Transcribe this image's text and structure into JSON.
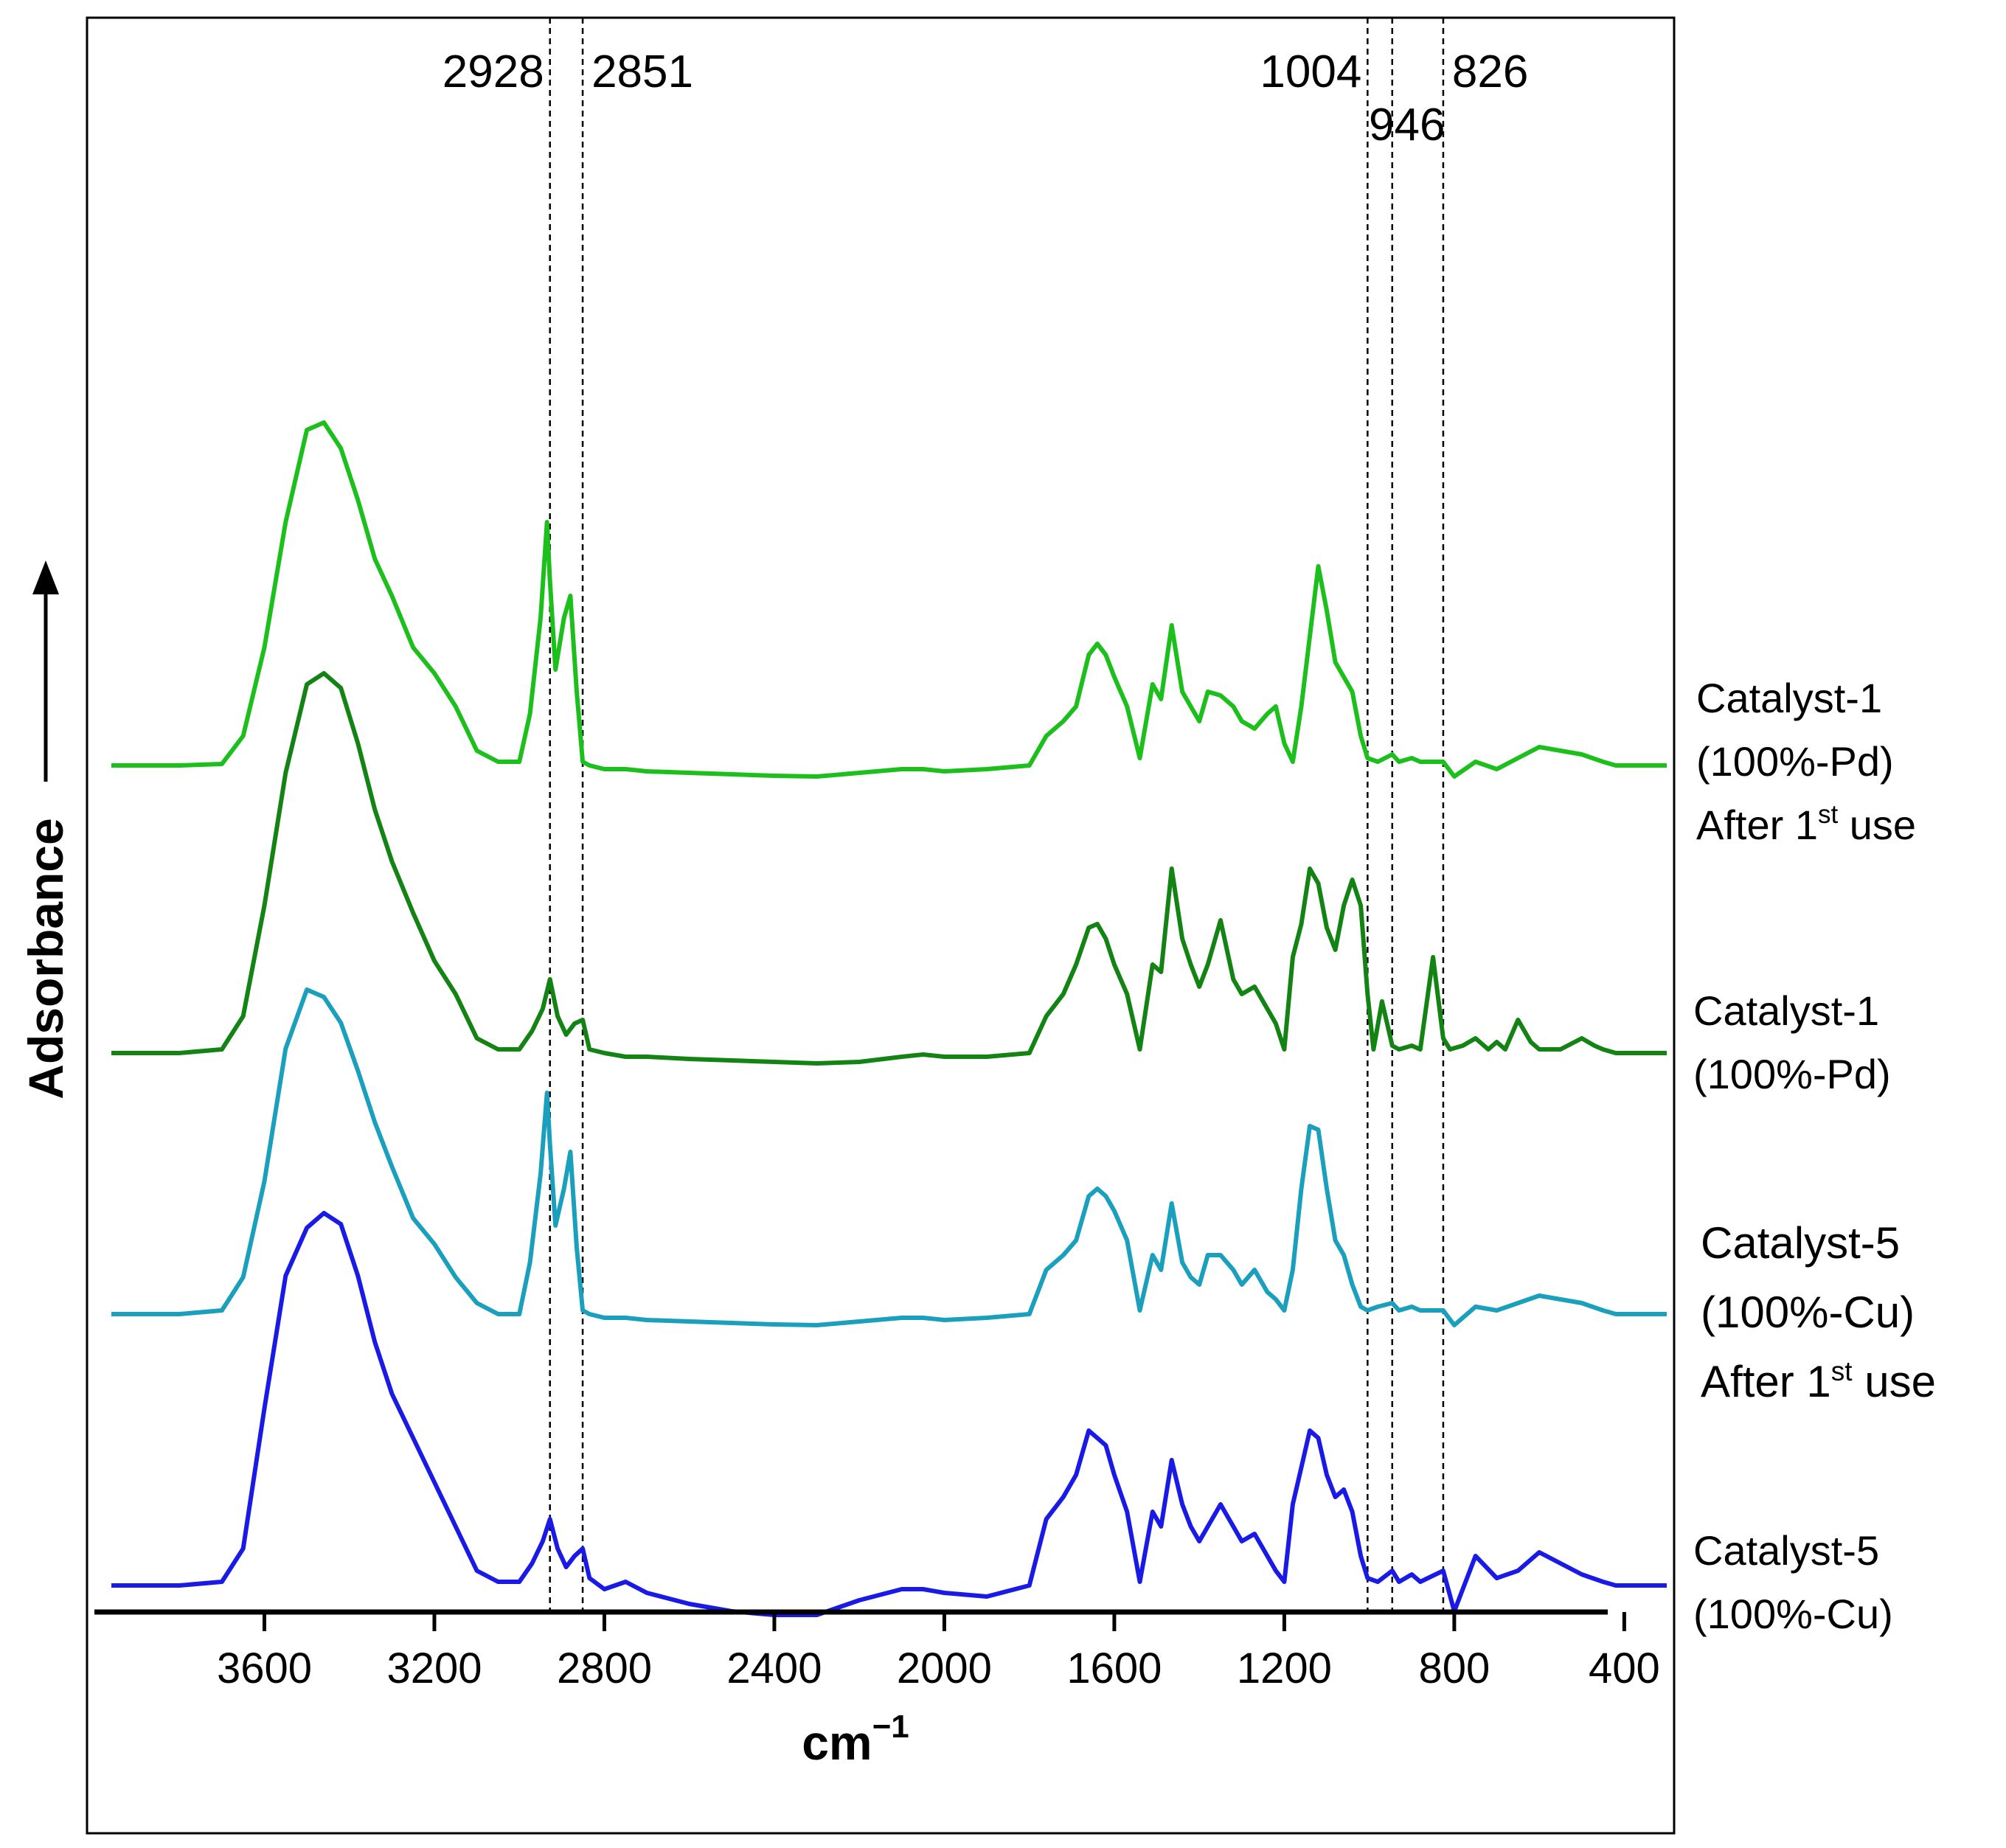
{
  "chart_data": {
    "type": "line",
    "title": "",
    "xlabel": "cm",
    "xlabel_sup": "−1",
    "ylabel": "Adsorbance",
    "x_reversed": true,
    "xlim": [
      4000,
      300
    ],
    "x_ticks": [
      3600,
      3200,
      2800,
      2400,
      2000,
      1600,
      1200,
      800,
      400
    ],
    "x_tick_labels": [
      "3600",
      "3200",
      "2800",
      "2400",
      "2000",
      "1600",
      "1200",
      "800",
      "400"
    ],
    "y_ticks_shown": false,
    "grid": false,
    "legend": "right, labels next to each curve",
    "annotations": {
      "reference_lines": [
        2928,
        2851,
        1004,
        946,
        826
      ],
      "labels": [
        "2928",
        "2851",
        "1004",
        "946",
        "826"
      ]
    },
    "series": [
      {
        "name_lines": [
          "Catalyst-1",
          "(100%-Pd)",
          "After 1",
          "st",
          " use"
        ],
        "color": "#1dbf1d",
        "x": [
          3960,
          3800,
          3700,
          3650,
          3600,
          3550,
          3500,
          3460,
          3420,
          3380,
          3340,
          3300,
          3250,
          3200,
          3150,
          3100,
          3050,
          3000,
          2975,
          2950,
          2935,
          2928,
          2915,
          2895,
          2880,
          2865,
          2851,
          2835,
          2800,
          2750,
          2700,
          2600,
          2500,
          2400,
          2300,
          2200,
          2100,
          2050,
          2000,
          1900,
          1800,
          1760,
          1720,
          1690,
          1660,
          1640,
          1620,
          1600,
          1570,
          1540,
          1510,
          1490,
          1465,
          1440,
          1420,
          1400,
          1380,
          1350,
          1320,
          1300,
          1270,
          1240,
          1220,
          1200,
          1180,
          1160,
          1140,
          1120,
          1100,
          1080,
          1060,
          1040,
          1020,
          1004,
          980,
          946,
          930,
          900,
          880,
          826,
          800,
          750,
          700,
          650,
          600,
          550,
          500,
          450,
          420,
          300
        ],
        "y": [
          0,
          0,
          2,
          40,
          160,
          330,
          455,
          465,
          430,
          360,
          280,
          230,
          160,
          125,
          80,
          20,
          5,
          5,
          70,
          200,
          330,
          250,
          130,
          200,
          230,
          100,
          5,
          0,
          -5,
          -5,
          -8,
          -10,
          -12,
          -14,
          -15,
          -10,
          -5,
          -5,
          -8,
          -5,
          0,
          40,
          60,
          80,
          150,
          165,
          150,
          120,
          80,
          10,
          110,
          90,
          190,
          100,
          80,
          60,
          100,
          95,
          80,
          60,
          50,
          70,
          80,
          30,
          5,
          80,
          175,
          270,
          210,
          140,
          120,
          100,
          40,
          10,
          5,
          15,
          5,
          10,
          5,
          5,
          -15,
          5,
          -5,
          10,
          25,
          20,
          15,
          5,
          0,
          0
        ]
      },
      {
        "name_lines": [
          "Catalyst-1",
          "(100%-Pd)"
        ],
        "color": "#138413",
        "x": [
          3960,
          3800,
          3700,
          3650,
          3600,
          3550,
          3500,
          3460,
          3420,
          3380,
          3340,
          3300,
          3250,
          3200,
          3150,
          3100,
          3050,
          3000,
          2970,
          2945,
          2928,
          2910,
          2890,
          2870,
          2851,
          2835,
          2800,
          2750,
          2700,
          2600,
          2500,
          2400,
          2300,
          2200,
          2100,
          2050,
          2000,
          1900,
          1800,
          1760,
          1720,
          1690,
          1660,
          1640,
          1620,
          1600,
          1570,
          1540,
          1510,
          1490,
          1465,
          1440,
          1420,
          1400,
          1380,
          1350,
          1320,
          1300,
          1270,
          1240,
          1220,
          1200,
          1180,
          1160,
          1140,
          1120,
          1100,
          1080,
          1060,
          1040,
          1020,
          1004,
          990,
          970,
          946,
          930,
          900,
          880,
          850,
          826,
          810,
          780,
          750,
          720,
          700,
          680,
          650,
          620,
          600,
          550,
          500,
          470,
          450,
          420,
          300
        ],
        "y": [
          0,
          0,
          5,
          50,
          200,
          380,
          500,
          515,
          495,
          420,
          330,
          260,
          190,
          125,
          80,
          20,
          5,
          5,
          30,
          60,
          100,
          50,
          25,
          40,
          45,
          5,
          0,
          -5,
          -5,
          -8,
          -10,
          -12,
          -14,
          -12,
          -5,
          -2,
          -5,
          -5,
          0,
          50,
          80,
          120,
          170,
          175,
          155,
          120,
          80,
          5,
          120,
          110,
          250,
          155,
          120,
          90,
          120,
          180,
          100,
          80,
          90,
          60,
          40,
          5,
          130,
          175,
          250,
          230,
          170,
          140,
          200,
          235,
          200,
          80,
          5,
          70,
          10,
          5,
          10,
          5,
          130,
          20,
          5,
          10,
          20,
          5,
          15,
          5,
          45,
          15,
          5,
          5,
          20,
          10,
          5,
          0,
          0
        ]
      },
      {
        "name_lines": [
          "Catalyst-5",
          "(100%-Cu)",
          "After 1",
          "st",
          " use"
        ],
        "color": "#1a9fbd",
        "x": [
          3960,
          3800,
          3700,
          3650,
          3600,
          3550,
          3500,
          3460,
          3420,
          3380,
          3340,
          3300,
          3250,
          3200,
          3150,
          3100,
          3050,
          3000,
          2975,
          2950,
          2935,
          2928,
          2915,
          2895,
          2880,
          2865,
          2851,
          2835,
          2800,
          2750,
          2700,
          2600,
          2500,
          2400,
          2300,
          2200,
          2100,
          2050,
          2000,
          1900,
          1800,
          1760,
          1720,
          1690,
          1660,
          1640,
          1620,
          1600,
          1570,
          1540,
          1510,
          1490,
          1465,
          1440,
          1420,
          1400,
          1380,
          1350,
          1320,
          1300,
          1270,
          1240,
          1220,
          1200,
          1180,
          1160,
          1140,
          1120,
          1100,
          1080,
          1060,
          1040,
          1020,
          1004,
          980,
          946,
          930,
          900,
          880,
          826,
          800,
          750,
          700,
          650,
          600,
          550,
          500,
          450,
          420,
          300
        ],
        "y": [
          0,
          0,
          5,
          50,
          180,
          360,
          440,
          430,
          395,
          330,
          260,
          200,
          130,
          95,
          50,
          15,
          0,
          0,
          70,
          190,
          300,
          230,
          120,
          170,
          220,
          90,
          5,
          0,
          -5,
          -5,
          -8,
          -10,
          -12,
          -14,
          -15,
          -10,
          -5,
          -5,
          -8,
          -5,
          0,
          60,
          80,
          100,
          160,
          170,
          160,
          140,
          100,
          5,
          80,
          60,
          150,
          70,
          50,
          40,
          80,
          80,
          60,
          40,
          60,
          30,
          20,
          5,
          60,
          170,
          255,
          250,
          170,
          100,
          80,
          40,
          10,
          5,
          10,
          15,
          5,
          10,
          5,
          5,
          -15,
          10,
          5,
          15,
          25,
          20,
          15,
          5,
          0,
          0
        ]
      },
      {
        "name_lines": [
          "Catalyst-5",
          "(100%-Cu)"
        ],
        "color": "#1a1ae6",
        "x": [
          3960,
          3800,
          3700,
          3650,
          3600,
          3550,
          3500,
          3460,
          3420,
          3380,
          3340,
          3300,
          3250,
          3200,
          3150,
          3100,
          3050,
          3000,
          2970,
          2945,
          2928,
          2910,
          2890,
          2870,
          2851,
          2835,
          2800,
          2750,
          2700,
          2600,
          2500,
          2400,
          2300,
          2200,
          2100,
          2050,
          2000,
          1900,
          1800,
          1760,
          1720,
          1690,
          1660,
          1640,
          1620,
          1600,
          1570,
          1540,
          1510,
          1490,
          1465,
          1440,
          1420,
          1400,
          1380,
          1350,
          1320,
          1300,
          1270,
          1240,
          1220,
          1200,
          1180,
          1160,
          1140,
          1120,
          1100,
          1080,
          1060,
          1040,
          1020,
          1004,
          980,
          946,
          930,
          900,
          880,
          826,
          800,
          750,
          700,
          650,
          600,
          550,
          500,
          450,
          420,
          300
        ],
        "y": [
          0,
          0,
          5,
          50,
          240,
          420,
          485,
          505,
          490,
          420,
          330,
          260,
          200,
          140,
          80,
          20,
          5,
          5,
          30,
          60,
          90,
          50,
          25,
          40,
          50,
          10,
          -5,
          5,
          -10,
          -25,
          -35,
          -40,
          -40,
          -20,
          -5,
          -5,
          -10,
          -15,
          0,
          90,
          120,
          150,
          210,
          200,
          190,
          150,
          100,
          5,
          100,
          80,
          170,
          110,
          80,
          60,
          80,
          110,
          80,
          60,
          70,
          40,
          20,
          5,
          110,
          160,
          210,
          200,
          150,
          120,
          130,
          100,
          40,
          10,
          5,
          20,
          5,
          15,
          5,
          20,
          -35,
          40,
          10,
          20,
          45,
          30,
          15,
          5,
          0,
          0
        ]
      }
    ]
  }
}
